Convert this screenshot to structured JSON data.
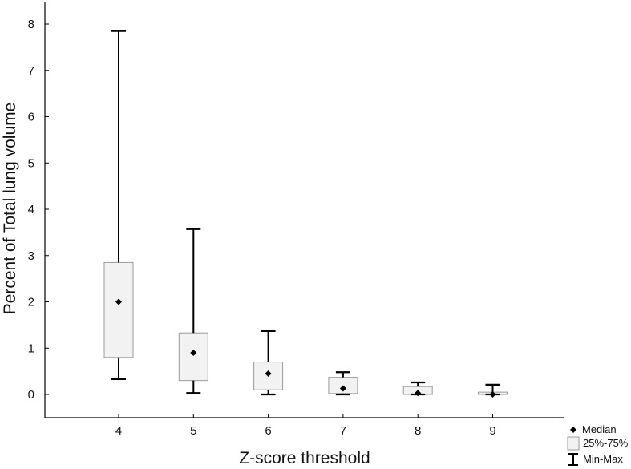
{
  "chart_data": {
    "type": "box",
    "title": "",
    "xlabel": "Z-score threshold",
    "ylabel": "Percent of Total lung volume",
    "categories": [
      "4",
      "5",
      "6",
      "7",
      "8",
      "9"
    ],
    "yticks": [
      "0",
      "1",
      "2",
      "3",
      "4",
      "5",
      "6",
      "7",
      "8"
    ],
    "ylim": [
      -0.5,
      8.5
    ],
    "grid": false,
    "boxes": [
      {
        "category": "4",
        "min": 0.33,
        "q1": 0.8,
        "median": 2.0,
        "q3": 2.85,
        "max": 7.85
      },
      {
        "category": "5",
        "min": 0.03,
        "q1": 0.3,
        "median": 0.9,
        "q3": 1.33,
        "max": 3.57
      },
      {
        "category": "6",
        "min": 0.0,
        "q1": 0.1,
        "median": 0.45,
        "q3": 0.7,
        "max": 1.37
      },
      {
        "category": "7",
        "min": 0.0,
        "q1": 0.02,
        "median": 0.13,
        "q3": 0.37,
        "max": 0.48
      },
      {
        "category": "8",
        "min": 0.0,
        "q1": 0.0,
        "median": 0.03,
        "q3": 0.17,
        "max": 0.26
      },
      {
        "category": "9",
        "min": 0.0,
        "q1": 0.0,
        "median": 0.0,
        "q3": 0.05,
        "max": 0.21
      }
    ],
    "legend": {
      "position": "bottom-right",
      "items": [
        {
          "symbol": "diamond",
          "label": "Median"
        },
        {
          "symbol": "box",
          "label": "25%-75%"
        },
        {
          "symbol": "whisker",
          "label": "Min-Max"
        }
      ]
    },
    "colors": {
      "box_fill": "#f2f2f2",
      "box_stroke": "#9a9a9a",
      "whisker": "#000000",
      "median": "#000000"
    }
  }
}
